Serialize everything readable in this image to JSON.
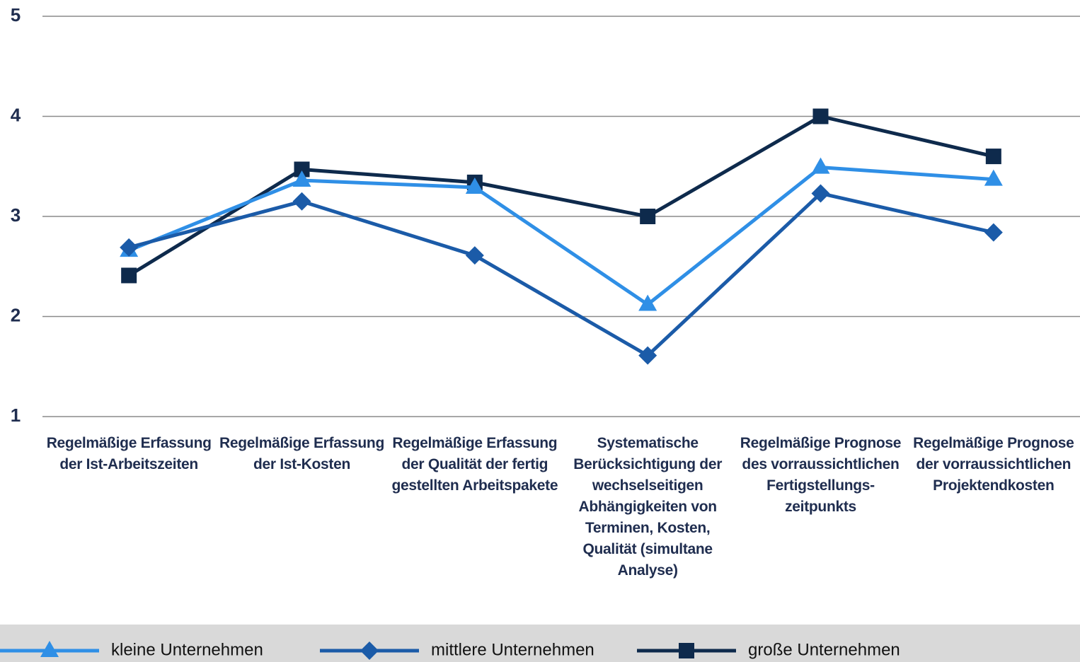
{
  "chart_data": {
    "type": "line",
    "categories": [
      "Regelmäßige Erfassung der Ist-Arbeitszeiten",
      "Regelmäßige Erfassung der Ist-Kosten",
      "Regelmäßige Erfassung der Qualität der fertig gestellten Arbeitspakete",
      "Systematische Berücksichtigung der wechselseitigen Abhängigkeiten von Terminen, Kosten, Qualität (simultane Analyse)",
      "Regelmäßige Prognose des vorraussichtlichen Fertigstellungs-zeitpunkts",
      "Regelmäßige Prognose der vorraussichtlichen Projektendkosten"
    ],
    "series": [
      {
        "name": "kleine Unternehmen",
        "color": "#2f8fe6",
        "marker": "triangle",
        "values": [
          2.66,
          3.36,
          3.29,
          2.12,
          3.49,
          3.37
        ]
      },
      {
        "name": "mittlere Unternehmen",
        "color": "#1b5ba8",
        "marker": "diamond",
        "values": [
          2.69,
          3.15,
          2.61,
          1.61,
          3.23,
          2.84
        ]
      },
      {
        "name": "große Unternehmen",
        "color": "#0e2a4c",
        "marker": "square",
        "values": [
          2.41,
          3.47,
          3.34,
          3.0,
          4.0,
          3.6
        ]
      }
    ],
    "ylim": [
      1,
      5
    ],
    "yticks": [
      1,
      2,
      3,
      4,
      5
    ],
    "grid": true,
    "legend": "bottom"
  }
}
